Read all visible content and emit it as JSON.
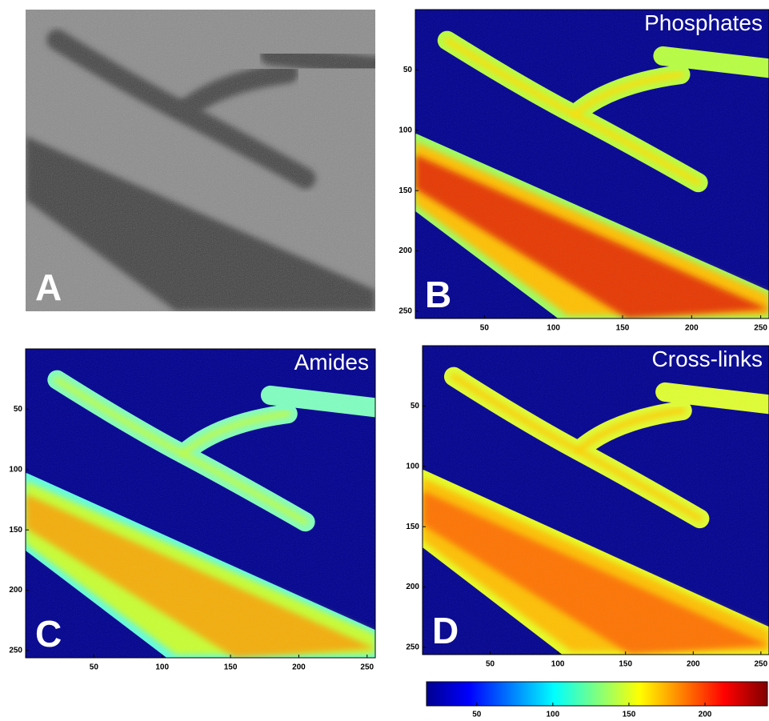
{
  "panels": [
    {
      "letter": "A"
    },
    {
      "letter": "B",
      "title": "Phosphates",
      "xlim": [
        0,
        256
      ],
      "ylim": [
        0,
        256
      ],
      "xticks": [
        50,
        100,
        150,
        200,
        250
      ],
      "yticks": [
        50,
        100,
        150,
        200,
        250
      ]
    },
    {
      "letter": "C",
      "title": "Amides",
      "xlim": [
        0,
        256
      ],
      "ylim": [
        0,
        256
      ],
      "xticks": [
        50,
        100,
        150,
        200,
        250
      ],
      "yticks": [
        50,
        100,
        150,
        200,
        250
      ]
    },
    {
      "letter": "D",
      "title": "Cross-links",
      "xlim": [
        0,
        256
      ],
      "ylim": [
        0,
        256
      ],
      "xticks": [
        50,
        100,
        150,
        200,
        250
      ],
      "yticks": [
        50,
        100,
        150,
        200,
        250
      ]
    }
  ],
  "colorbar": {
    "lim": [
      17,
      241
    ],
    "ticks": [
      50,
      100,
      150,
      200
    ]
  }
}
